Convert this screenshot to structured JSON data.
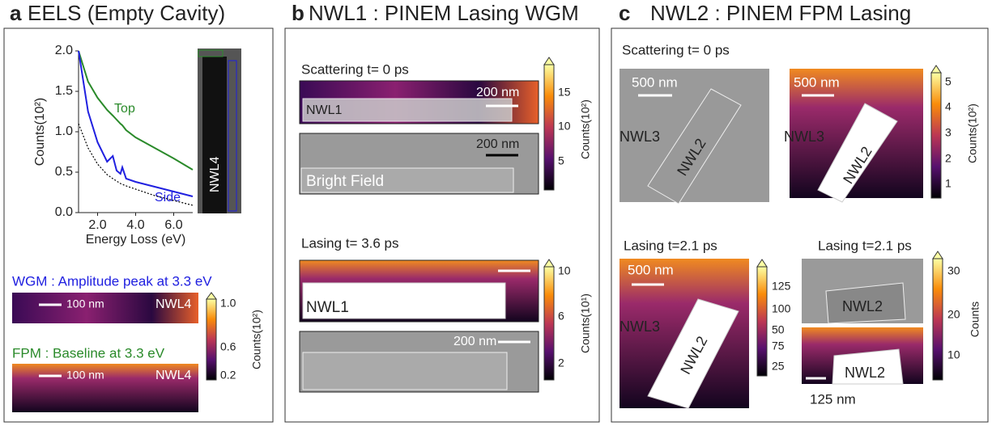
{
  "panel_a": {
    "letter": "a",
    "title": "EELS (Empty Cavity)",
    "chart": {
      "type": "line",
      "xlabel": "Energy Loss (eV)",
      "ylabel": "Counts(10²)",
      "xlim": [
        1,
        7
      ],
      "ylim": [
        0,
        2
      ],
      "xticks": [
        {
          "value": 2,
          "label": "2.0"
        },
        {
          "value": 4,
          "label": "4.0"
        },
        {
          "value": 6,
          "label": "6.0"
        }
      ],
      "yticks": [
        {
          "value": 0,
          "label": "0.0"
        },
        {
          "value": 0.5,
          "label": "0.5"
        },
        {
          "value": 1,
          "label": "1.0"
        },
        {
          "value": 1.5,
          "label": "1.5"
        },
        {
          "value": 2,
          "label": "2.0"
        }
      ],
      "x": [
        1,
        1.5,
        2,
        2.5,
        2.8,
        3,
        3.2,
        3.3,
        3.5,
        4,
        5,
        6,
        7
      ],
      "series": [
        {
          "name": "Top",
          "color": "#2a8a2a",
          "values": [
            2.0,
            1.62,
            1.42,
            1.27,
            1.2,
            1.15,
            1.1,
            1.08,
            1.02,
            0.93,
            0.8,
            0.67,
            0.53
          ]
        },
        {
          "name": "Side",
          "color": "#2020e0",
          "values": [
            2.0,
            1.25,
            0.87,
            0.63,
            0.7,
            0.52,
            0.48,
            0.56,
            0.42,
            0.38,
            0.32,
            0.26,
            0.2
          ]
        },
        {
          "color": "#000000",
          "values": [
            1.1,
            0.8,
            0.6,
            0.47,
            0.42,
            0.39,
            0.36,
            0.35,
            0.33,
            0.29,
            0.21,
            0.15,
            0.09
          ]
        }
      ]
    },
    "image_label": "NWL4",
    "maps": [
      {
        "caption": "WGM : Amplitude peak at 3.3 eV",
        "scale": "100 nm",
        "label": "NWL4"
      },
      {
        "caption": "FPM : Baseline at 3.3 eV",
        "scale": "100 nm",
        "label": "NWL4"
      }
    ],
    "colorbar": {
      "ticks": [
        "1.0",
        "0.6",
        "0.2"
      ],
      "label": "Counts(10²)"
    }
  },
  "panel_b": {
    "letter": "b",
    "title": "NWL1 : PINEM Lasing WGM",
    "rows": [
      {
        "caption": "Scattering t= 0 ps",
        "map_scale": "200 nm",
        "map_label": "NWL1",
        "bf_scale": "200 nm",
        "bf_label": "Bright Field",
        "colorbar": {
          "ticks": [
            "15",
            "10",
            "5"
          ],
          "label": "Counts(10²)"
        }
      },
      {
        "caption": "Lasing t= 3.6  ps",
        "map_label": "NWL1",
        "bf_scale": "200 nm",
        "colorbar": {
          "ticks": [
            "10",
            "6",
            "2"
          ],
          "label": "Counts(10¹)"
        }
      }
    ]
  },
  "panel_c": {
    "letter": "c",
    "title": "NWL2 : PINEM FPM Lasing",
    "top": {
      "caption": "Scattering t= 0 ps",
      "bf": {
        "scale": "500 nm",
        "labels": [
          "NWL3",
          "NWL2"
        ]
      },
      "map": {
        "scale": "500 nm",
        "labels": [
          "NWL3",
          "NWL2"
        ]
      },
      "colorbar": {
        "ticks": [
          "5",
          "4",
          "3",
          "2",
          "1"
        ],
        "label": "Counts(10²)"
      }
    },
    "bottom_left": {
      "caption": "Lasing t=2.1 ps",
      "scale": "500 nm",
      "labels": [
        "NWL3",
        "NWL2"
      ],
      "colorbar": {
        "ticks": [
          "125",
          "100",
          "50",
          "75",
          "25"
        ]
      }
    },
    "bottom_right": {
      "caption": "Lasing t=2.1 ps",
      "bf_label": "NWL2",
      "map_label": "NWL2",
      "scale": "125 nm",
      "colorbar": {
        "ticks": [
          "30",
          "20",
          "10"
        ],
        "label": "Counts"
      }
    }
  }
}
